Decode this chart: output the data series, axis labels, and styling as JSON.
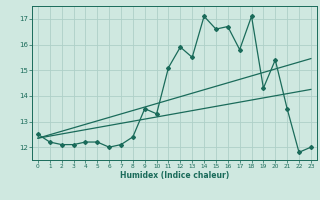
{
  "xlabel": "Humidex (Indice chaleur)",
  "bg_color": "#cfe8e0",
  "grid_color": "#aed0c8",
  "line_color": "#1a6b5a",
  "main_series_x": [
    0,
    1,
    2,
    3,
    4,
    5,
    6,
    7,
    8,
    9,
    10,
    11,
    12,
    13,
    14,
    15,
    16,
    17,
    18,
    19,
    20,
    21,
    22,
    23
  ],
  "main_series_y": [
    12.5,
    12.2,
    12.1,
    12.1,
    12.2,
    12.2,
    12.0,
    12.1,
    12.4,
    13.5,
    13.3,
    15.1,
    15.9,
    15.5,
    17.1,
    16.6,
    16.7,
    15.8,
    17.1,
    14.3,
    15.4,
    13.5,
    11.8,
    12.0
  ],
  "xlim": [
    -0.5,
    23.5
  ],
  "ylim": [
    11.5,
    17.5
  ],
  "yticks": [
    12,
    13,
    14,
    15,
    16,
    17
  ],
  "xticks": [
    0,
    1,
    2,
    3,
    4,
    5,
    6,
    7,
    8,
    9,
    10,
    11,
    12,
    13,
    14,
    15,
    16,
    17,
    18,
    19,
    20,
    21,
    22,
    23
  ],
  "trend1_x": [
    0,
    23
  ],
  "trend1_y": [
    12.35,
    15.45
  ],
  "trend2_x": [
    0,
    23
  ],
  "trend2_y": [
    12.35,
    14.25
  ]
}
